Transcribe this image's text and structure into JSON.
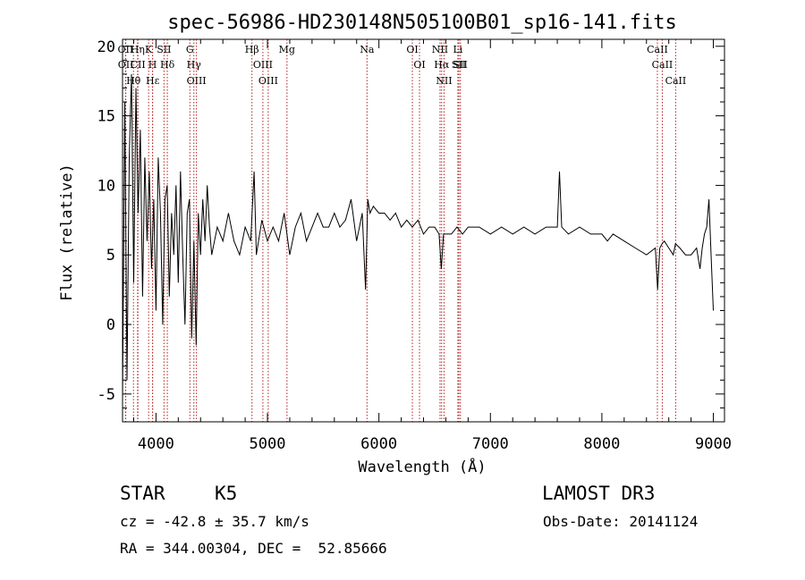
{
  "chart_data": {
    "type": "line",
    "title": "spec-56986-HD230148N505100B01_sp16-141.fits",
    "xlabel": "Wavelength (Å)",
    "ylabel": "Flux (relative)",
    "xlim": [
      3700,
      9100
    ],
    "ylim": [
      -7,
      20.5
    ],
    "xticks": [
      4000,
      5000,
      6000,
      7000,
      8000,
      9000
    ],
    "xtick_labels": [
      "4000",
      "5000",
      "6000",
      "7000",
      "8000",
      "9000"
    ],
    "yticks": [
      -5,
      0,
      5,
      10,
      15,
      20
    ],
    "ytick_labels": [
      "-5",
      "0",
      "5",
      "10",
      "15",
      "20"
    ],
    "grid": false,
    "line_color": "#000000",
    "marker_color": "#b22222",
    "spectrum": {
      "name": "Flux",
      "x": [
        3700,
        3720,
        3740,
        3760,
        3780,
        3800,
        3820,
        3840,
        3860,
        3880,
        3900,
        3920,
        3940,
        3960,
        3980,
        4000,
        4020,
        4040,
        4060,
        4080,
        4100,
        4120,
        4140,
        4160,
        4180,
        4200,
        4220,
        4240,
        4260,
        4280,
        4300,
        4320,
        4340,
        4360,
        4380,
        4400,
        4420,
        4440,
        4460,
        4480,
        4500,
        4550,
        4600,
        4650,
        4700,
        4750,
        4800,
        4850,
        4880,
        4900,
        4950,
        5000,
        5050,
        5100,
        5150,
        5200,
        5250,
        5300,
        5350,
        5400,
        5450,
        5500,
        5550,
        5600,
        5650,
        5700,
        5750,
        5800,
        5850,
        5880,
        5900,
        5920,
        5950,
        6000,
        6050,
        6100,
        6150,
        6200,
        6250,
        6300,
        6350,
        6400,
        6450,
        6500,
        6540,
        6560,
        6580,
        6600,
        6650,
        6700,
        6750,
        6800,
        6900,
        7000,
        7100,
        7200,
        7300,
        7400,
        7500,
        7600,
        7620,
        7640,
        7700,
        7800,
        7900,
        8000,
        8050,
        8100,
        8200,
        8300,
        8400,
        8480,
        8500,
        8520,
        8540,
        8560,
        8600,
        8640,
        8660,
        8700,
        8750,
        8800,
        8850,
        8880,
        8900,
        8920,
        8940,
        8960,
        8980,
        9000
      ],
      "y": [
        -5.5,
        16,
        -4,
        12,
        18,
        3,
        17,
        8,
        14,
        2,
        12,
        6,
        11,
        4,
        9,
        1,
        12,
        8,
        0,
        9,
        10,
        2,
        8,
        5,
        10,
        3,
        11,
        5,
        0,
        8,
        9,
        -1,
        6,
        -1.5,
        8,
        5,
        9,
        6,
        10,
        7,
        5,
        7,
        6,
        8,
        6,
        5,
        7,
        6,
        11,
        5,
        7.5,
        6,
        7,
        6,
        8,
        5,
        7,
        8,
        6,
        7,
        8,
        7,
        7,
        8,
        7,
        7.5,
        9,
        6,
        8,
        2.5,
        9,
        8,
        8.5,
        8,
        8,
        7.5,
        8,
        7,
        7.5,
        7,
        7.5,
        6.5,
        7,
        7,
        6.5,
        4,
        6.5,
        6.5,
        6.5,
        7,
        6.5,
        7,
        7,
        6.5,
        7,
        6.5,
        7,
        6.5,
        7,
        7,
        11,
        7,
        6.5,
        7,
        6.5,
        6.5,
        6,
        6.5,
        6,
        5.5,
        5,
        5.5,
        2.5,
        5.5,
        5.8,
        6,
        5.5,
        5,
        5.8,
        5.5,
        5,
        5,
        5.5,
        4,
        5.5,
        6.5,
        7,
        9,
        5,
        1
      ]
    },
    "lines": [
      {
        "label": "Hβ",
        "x": 4861
      },
      {
        "label": "OIII",
        "x": 4959
      },
      {
        "label": "OIII",
        "x": 5007
      },
      {
        "label": "Mg",
        "x": 5175
      },
      {
        "label": "Na",
        "x": 5893
      },
      {
        "label": "OI",
        "x": 6300
      },
      {
        "label": "OI",
        "x": 6364
      },
      {
        "label": "Hα",
        "x": 6563
      },
      {
        "label": "NII",
        "x": 6548
      },
      {
        "label": "NII",
        "x": 6584
      },
      {
        "label": "SII",
        "x": 6717
      },
      {
        "label": "SII",
        "x": 6731
      },
      {
        "label": "Li",
        "x": 6708
      },
      {
        "label": "CaII",
        "x": 8498
      },
      {
        "label": "CaII",
        "x": 8542
      },
      {
        "label": "CaII",
        "x": 8662
      },
      {
        "label": "Hδ",
        "x": 4102
      },
      {
        "label": "Hγ",
        "x": 4340
      },
      {
        "label": "G",
        "x": 4304
      },
      {
        "label": "OIII",
        "x": 4363
      },
      {
        "label": "K",
        "x": 3934
      },
      {
        "label": "H",
        "x": 3969
      },
      {
        "label": "Hε",
        "x": 3970
      },
      {
        "label": "SII",
        "x": 4072
      },
      {
        "label": "OII",
        "x": 3727
      },
      {
        "label": "CII",
        "x": 3838
      },
      {
        "label": "Hθ",
        "x": 3798
      },
      {
        "label": "Hη",
        "x": 3835
      },
      {
        "label": "OII",
        "x": 3729
      }
    ]
  },
  "info": {
    "class": "STAR",
    "subclass": "K5",
    "survey": "LAMOST DR3",
    "cz": "cz = -42.8 ± 35.7 km/s",
    "obs_date": "Obs-Date: 20141124",
    "coords": "RA = 344.00304, DEC =  52.85666"
  }
}
